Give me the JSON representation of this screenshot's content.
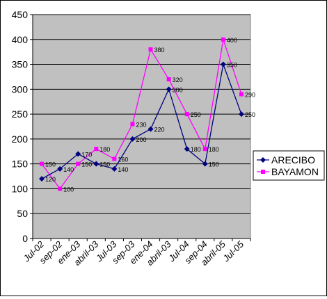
{
  "chart_data": {
    "type": "line",
    "categories": [
      "Jul-02",
      "sep-02",
      "ene-03",
      "abril-03",
      "Jul-03",
      "sep-03",
      "ene-04",
      "abril-03",
      "Jul-04",
      "sep-04",
      "abril-05",
      "Jul-05"
    ],
    "series": [
      {
        "name": "ARECIBO",
        "values": [
          120,
          140,
          170,
          150,
          140,
          200,
          220,
          300,
          180,
          150,
          350,
          250
        ],
        "color": "#000080",
        "marker": "diamond"
      },
      {
        "name": "BAYAMON",
        "values": [
          150,
          100,
          150,
          180,
          160,
          230,
          380,
          320,
          250,
          180,
          400,
          290
        ],
        "color": "#ff00ff",
        "marker": "square"
      }
    ],
    "y_ticks": [
      "0",
      "50",
      "100",
      "150",
      "200",
      "250",
      "300",
      "350",
      "400",
      "450"
    ],
    "ylim": [
      0,
      450
    ],
    "grid": true,
    "plot_background": "#c0c0c0",
    "legend": "right",
    "title": "",
    "xlabel": "",
    "ylabel": ""
  }
}
